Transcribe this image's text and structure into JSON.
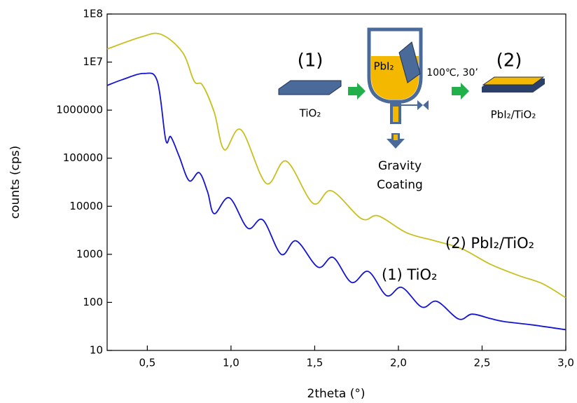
{
  "chart_data": {
    "type": "line",
    "xlabel": "2theta (°)",
    "ylabel": "counts (cps)",
    "xlim": [
      0.26,
      3.0
    ],
    "ylim": [
      10,
      100000000
    ],
    "log_y": true,
    "xticks": [
      {
        "value": 0.5,
        "label": "0,5"
      },
      {
        "value": 1.0,
        "label": "1,0"
      },
      {
        "value": 1.5,
        "label": "1,5"
      },
      {
        "value": 2.0,
        "label": "2,0"
      },
      {
        "value": 2.5,
        "label": "2,5"
      },
      {
        "value": 3.0,
        "label": "3,0"
      }
    ],
    "yticks": [
      10,
      100,
      1000,
      10000,
      100000,
      1000000,
      {
        "value": 10000000,
        "label": "1E7"
      },
      {
        "value": 100000000,
        "label": "1E8"
      }
    ],
    "series": [
      {
        "name": "(1) TiO₂",
        "color": "#1414d2",
        "x": [
          0.26,
          0.35,
          0.48,
          0.56,
          0.61,
          0.64,
          0.69,
          0.75,
          0.81,
          0.86,
          0.9,
          0.99,
          1.1,
          1.19,
          1.3,
          1.39,
          1.52,
          1.61,
          1.72,
          1.82,
          1.93,
          2.02,
          2.14,
          2.23,
          2.36,
          2.44,
          2.55,
          2.63,
          2.8,
          3.0
        ],
        "values": [
          3260000,
          4300000,
          5800000,
          4000000,
          240000,
          280000,
          110000,
          34000,
          50000,
          20000,
          7000,
          15000,
          3500,
          5200,
          1000,
          1900,
          540,
          860,
          260,
          440,
          138,
          205,
          80,
          105,
          45,
          57,
          46,
          40,
          34,
          27
        ]
      },
      {
        "name": "(2) PbI₂/TiO₂",
        "color": "#c8c020",
        "x": [
          0.26,
          0.46,
          0.58,
          0.71,
          0.78,
          0.83,
          0.9,
          0.96,
          1.06,
          1.21,
          1.33,
          1.49,
          1.6,
          1.78,
          1.88,
          2.05,
          2.22,
          2.38,
          2.55,
          2.72,
          2.86,
          3.0
        ],
        "values": [
          18700000,
          33000000,
          38000000,
          16000000,
          4000000,
          3300000,
          900000,
          150000,
          390000,
          30000,
          87000,
          11500,
          21000,
          5500,
          6300,
          2800,
          1900,
          1300,
          620,
          360,
          245,
          125
        ]
      }
    ],
    "annotations": [
      "(2) PbI₂/TiO₂",
      "(1) TiO₂"
    ],
    "inset": {
      "step1": "(1)",
      "substrate1": "TiO₂",
      "precursor": "PbI₂",
      "condition": "100℃, 30’",
      "step2": "(2)",
      "substrate2": "PbI₂/TiO₂",
      "method_line1": "Gravity",
      "method_line2": "Coating"
    }
  }
}
